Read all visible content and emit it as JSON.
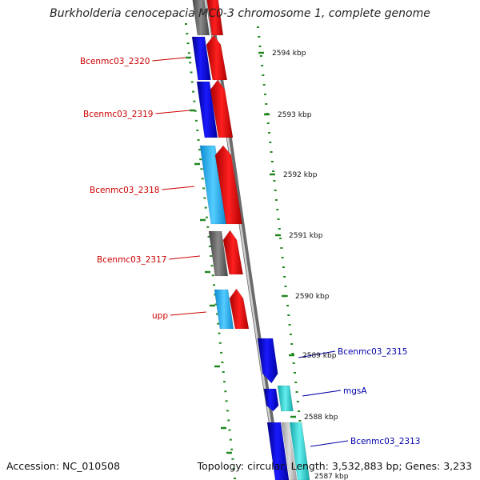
{
  "title": "Burkholderia cenocepacia MC0-3 chromosome 1, complete genome",
  "footer": {
    "accession": "Accession: NC_010508",
    "summary": "Topology: circular; Length: 3,532,883 bp; Genes: 3,233"
  },
  "scale_labels": [
    "2594 kbp",
    "2593 kbp",
    "2592 kbp",
    "2591 kbp",
    "2590 kbp",
    "2589 kbp",
    "2588 kbp",
    "2587 kbp"
  ],
  "left_gene_labels": [
    "Bcenmc03_2320",
    "Bcenmc03_2319",
    "Bcenmc03_2318",
    "Bcenmc03_2317",
    "upp"
  ],
  "right_gene_labels": [
    "Bcenmc03_2315",
    "mgsA",
    "Bcenmc03_2313"
  ],
  "colors": {
    "label_left": "#cc0000",
    "label_right": "#0000aa",
    "red": "#ff0000",
    "blue": "#0000ee",
    "cyan": "#22bbff",
    "teal": "#33dddd",
    "gray": "#666666",
    "tick": "#228822"
  }
}
